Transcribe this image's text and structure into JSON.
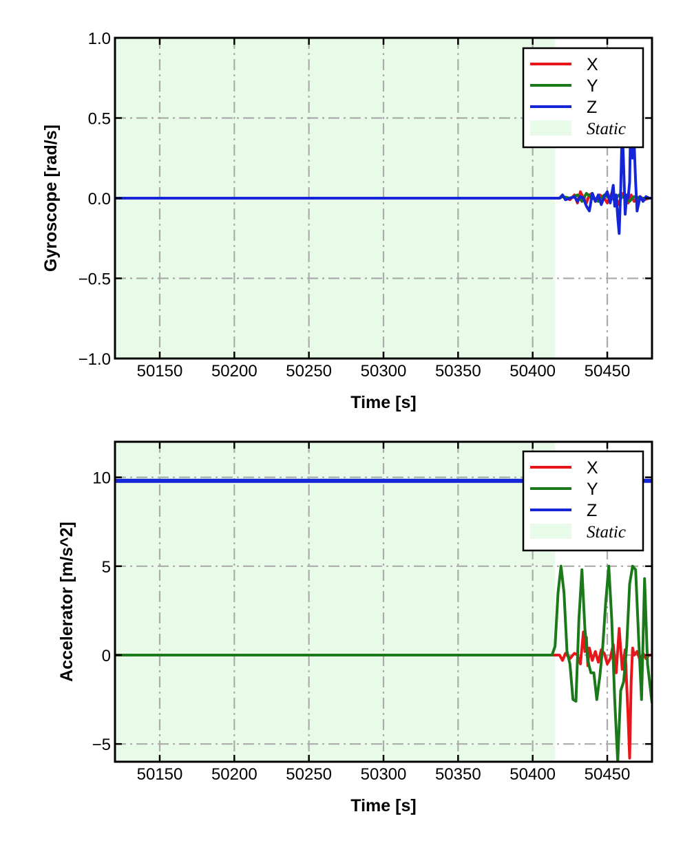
{
  "chart_data": [
    {
      "type": "line",
      "xlabel": "Time [s]",
      "ylabel": "Gyroscope [rad/s]",
      "xlim": [
        50120,
        50480
      ],
      "ylim": [
        -1.0,
        1.0
      ],
      "xticks": [
        50150,
        50200,
        50250,
        50300,
        50350,
        50400,
        50450
      ],
      "xtick_labels": [
        "50150",
        "50200",
        "50250",
        "50300",
        "50350",
        "50400",
        "50450"
      ],
      "yticks": [
        -1.0,
        -0.5,
        0.0,
        0.5,
        1.0
      ],
      "ytick_labels": [
        "−1.0",
        "−0.5",
        "0.0",
        "0.5",
        "1.0"
      ],
      "grid": true,
      "legend_position": "top-right",
      "static_region": {
        "label": "Static",
        "x_start": 50120,
        "x_end": 50415,
        "color": "#e8fbe8"
      },
      "series": [
        {
          "name": "X",
          "color": "#e8161b",
          "x": [
            50120,
            50418,
            50420,
            50425,
            50428,
            50430,
            50432,
            50434,
            50436,
            50438,
            50440,
            50442,
            50445,
            50448,
            50450,
            50453,
            50456,
            50458,
            50460,
            50462,
            50464,
            50466,
            50468,
            50470,
            50472,
            50475,
            50478,
            50480
          ],
          "y": [
            0.0,
            0.0,
            0.01,
            -0.01,
            0.02,
            -0.03,
            0.04,
            0.0,
            -0.03,
            0.02,
            0.03,
            -0.02,
            0.02,
            0.0,
            -0.03,
            0.03,
            0.0,
            -0.04,
            0.03,
            0.0,
            -0.03,
            0.02,
            -0.02,
            0.0,
            0.01,
            -0.01,
            0.0,
            0.0
          ]
        },
        {
          "name": "Y",
          "color": "#1a7a1a",
          "x": [
            50120,
            50418,
            50420,
            50425,
            50430,
            50433,
            50436,
            50440,
            50444,
            50448,
            50452,
            50455,
            50458,
            50462,
            50465,
            50468,
            50472,
            50476,
            50480
          ],
          "y": [
            0.0,
            0.0,
            0.01,
            0.0,
            0.02,
            -0.02,
            0.03,
            0.0,
            -0.02,
            0.02,
            0.0,
            -0.01,
            0.02,
            0.0,
            -0.02,
            0.01,
            0.0,
            0.0,
            0.0
          ]
        },
        {
          "name": "Z",
          "color": "#1426d8",
          "x": [
            50120,
            50418,
            50420,
            50422,
            50425,
            50428,
            50430,
            50432,
            50434,
            50436,
            50438,
            50440,
            50442,
            50444,
            50446,
            50448,
            50450,
            50452,
            50454,
            50455,
            50456,
            50457,
            50458,
            50459,
            50460,
            50461,
            50462,
            50463,
            50464,
            50465,
            50466,
            50467,
            50468,
            50469,
            50470,
            50472,
            50474,
            50476,
            50478,
            50480
          ],
          "y": [
            0.0,
            0.0,
            0.02,
            -0.01,
            0.0,
            0.01,
            -0.02,
            0.01,
            0.0,
            -0.05,
            -0.08,
            0.03,
            -0.02,
            0.02,
            -0.04,
            0.01,
            0.04,
            -0.03,
            0.08,
            -0.05,
            0.02,
            -0.12,
            -0.22,
            0.05,
            0.45,
            0.2,
            -0.1,
            0.02,
            0.0,
            0.1,
            0.65,
            0.25,
            0.35,
            0.1,
            -0.08,
            0.01,
            -0.02,
            0.01,
            0.0,
            0.0
          ]
        }
      ]
    },
    {
      "type": "line",
      "xlabel": "Time [s]",
      "ylabel": "Accelerator [m/s^2]",
      "xlim": [
        50120,
        50480
      ],
      "ylim": [
        -6.0,
        12.0
      ],
      "xticks": [
        50150,
        50200,
        50250,
        50300,
        50350,
        50400,
        50450
      ],
      "xtick_labels": [
        "50150",
        "50200",
        "50250",
        "50300",
        "50350",
        "50400",
        "50450"
      ],
      "yticks": [
        -5,
        0,
        5,
        10
      ],
      "ytick_labels": [
        "−5",
        "0",
        "5",
        "10"
      ],
      "grid": true,
      "legend_position": "top-right",
      "static_region": {
        "label": "Static",
        "x_start": 50120,
        "x_end": 50415,
        "color": "#e8fbe8"
      },
      "series": [
        {
          "name": "X",
          "color": "#e8161b",
          "x": [
            50120,
            50418,
            50420,
            50422,
            50425,
            50428,
            50430,
            50432,
            50434,
            50435,
            50436,
            50437,
            50438,
            50440,
            50442,
            50444,
            50446,
            50448,
            50450,
            50452,
            50454,
            50456,
            50458,
            50460,
            50462,
            50464,
            50465,
            50466,
            50467,
            50468,
            50470,
            50472,
            50474,
            50476,
            50478,
            50480
          ],
          "y": [
            0.0,
            0.0,
            -0.3,
            0.1,
            -0.2,
            0.1,
            0.0,
            -0.5,
            1.3,
            0.2,
            1.0,
            -0.6,
            0.4,
            -0.3,
            0.2,
            -0.4,
            0.3,
            0.1,
            -0.5,
            -0.2,
            0.6,
            -1.0,
            1.5,
            -0.8,
            0.3,
            -3.5,
            -5.8,
            -1.5,
            0.4,
            0.0,
            0.2,
            -0.3,
            0.1,
            -0.2,
            0.0,
            0.0
          ]
        },
        {
          "name": "Y",
          "color": "#1a7a1a",
          "x": [
            50120,
            50413,
            50415,
            50417,
            50419,
            50421,
            50423,
            50425,
            50427,
            50429,
            50431,
            50433,
            50435,
            50437,
            50439,
            50441,
            50443,
            50445,
            50447,
            50449,
            50451,
            50453,
            50455,
            50457,
            50459,
            50461,
            50463,
            50465,
            50467,
            50469,
            50471,
            50473,
            50475,
            50477,
            50480
          ],
          "y": [
            0.0,
            0.0,
            0.5,
            3.5,
            5.0,
            3.5,
            0.2,
            -0.5,
            -2.5,
            -2.6,
            2.0,
            4.8,
            1.5,
            -0.3,
            -1.0,
            -1.0,
            -2.5,
            -1.2,
            0.5,
            3.0,
            5.0,
            2.0,
            -2.5,
            -6.0,
            -2.0,
            -1.5,
            0.5,
            4.0,
            5.0,
            4.8,
            1.0,
            -2.5,
            4.3,
            -0.5,
            -2.7
          ]
        },
        {
          "name": "Z",
          "color": "#1426d8",
          "x": [
            50120,
            50480
          ],
          "y": [
            9.8,
            9.8
          ]
        }
      ]
    }
  ]
}
